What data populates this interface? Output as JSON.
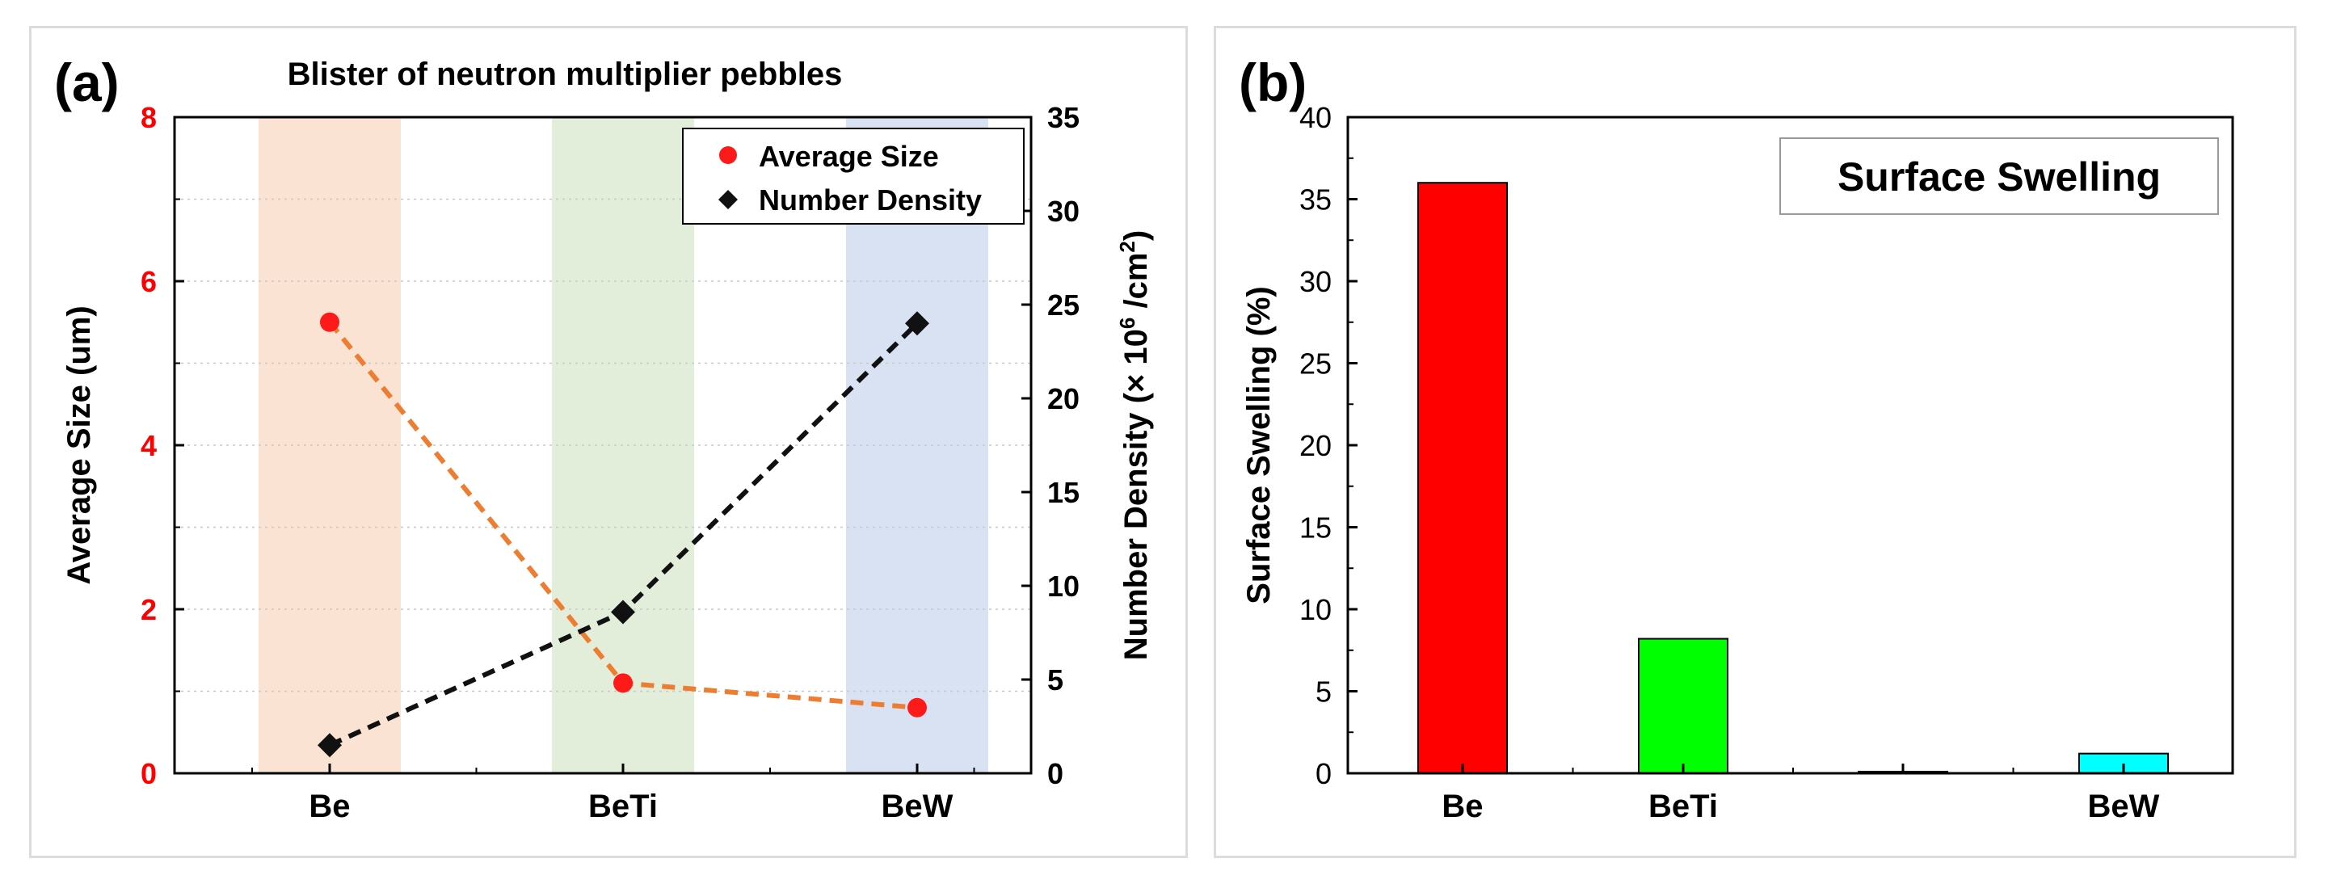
{
  "chart_data": [
    {
      "panel_label": "(a)",
      "type": "line",
      "title": "Blister of neutron multiplier pebbles",
      "categories": [
        "Be",
        "BeTi",
        "BeW"
      ],
      "y_left": {
        "label": "Average Size (um)",
        "range": [
          0,
          8
        ],
        "ticks": [
          "0",
          "2",
          "4",
          "6",
          "8"
        ],
        "tick_color": "#ff0000"
      },
      "y_right": {
        "label_main": "Number Density (× 10",
        "label_sup1": "6",
        "label_mid": " /cm",
        "label_sup2": "2",
        "label_end": ")",
        "range": [
          0,
          35
        ],
        "ticks": [
          "0",
          "5",
          "10",
          "15",
          "20",
          "25",
          "30",
          "35"
        ]
      },
      "background_bands": [
        "#fae3d3",
        "#e2eeda",
        "#d9e2f3"
      ],
      "series": [
        {
          "name": "Average Size",
          "axis": "left",
          "values": [
            5.5,
            1.1,
            0.8
          ],
          "marker": "circle",
          "marker_color": "#ff1a1a",
          "line_color": "#ed7d31"
        },
        {
          "name": "Number Density",
          "axis": "right",
          "values": [
            1.5,
            8.6,
            24.0
          ],
          "marker": "diamond",
          "marker_color": "#111111",
          "line_color": "#111111"
        }
      ],
      "legend": "top-right",
      "grid": "horizontal-dotted"
    },
    {
      "panel_label": "(b)",
      "type": "bar",
      "categories": [
        "Be",
        "BeTi",
        "",
        "BeW"
      ],
      "values": [
        36.0,
        8.2,
        0.1,
        1.2
      ],
      "colors": [
        "#ff0000",
        "#00ff00",
        "#cccccc",
        "#00ffff"
      ],
      "ylabel": "Surface Swelling (%)",
      "ylim": [
        0,
        40
      ],
      "ticks": [
        "0",
        "5",
        "10",
        "15",
        "20",
        "25",
        "30",
        "35",
        "40"
      ],
      "legend_text": "Surface Swelling",
      "legend": "top-right"
    }
  ]
}
